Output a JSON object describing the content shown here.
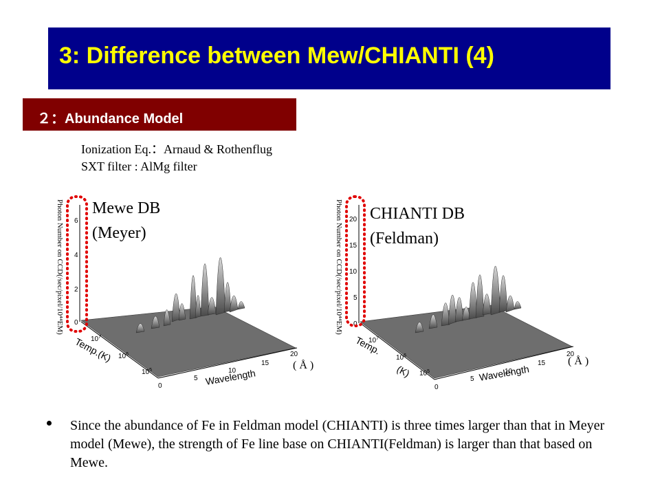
{
  "title": "3: Difference between Mew/CHIANTI (4)",
  "section": "２：Abundance Model",
  "info": {
    "line1": "Ionization Eq.：Arnaud & Rothenflug",
    "line2": "SXT filter : AlMg filter"
  },
  "plots": [
    {
      "db_line1": "Mewe DB",
      "db_line2": "(Meyer)",
      "z_ticks": [
        "6",
        "4",
        "2",
        "0"
      ],
      "y_ticks": [
        "10⁷",
        "10⁶",
        "10⁵"
      ],
      "y_tick_exp": [
        "7",
        "6",
        "5"
      ],
      "x_ticks": [
        "0",
        "5",
        "10",
        "15",
        "20"
      ],
      "z_label": "Photon Number on CCD(/sec/pixel/10⁴⁴EM)",
      "temp_label": "Temp.(K)",
      "wave_label": "Wavelength",
      "unit_label": "( Å )"
    },
    {
      "db_line1": "CHIANTI DB",
      "db_line2": "(Feldman)",
      "z_ticks": [
        "20",
        "15",
        "10",
        "5",
        "0"
      ],
      "y_ticks": [
        "10⁷",
        "10⁶",
        "10⁵"
      ],
      "y_tick_exp": [
        "7",
        "6",
        "5"
      ],
      "x_ticks": [
        "0",
        "5",
        "10",
        "15",
        "20"
      ],
      "z_label": "Photon Number on CCD(/sec/pixel/10⁴⁴EM)",
      "temp_label": "Temp.",
      "temp_label2": "(K)",
      "wave_label": "Wavelength",
      "unit_label": "( Å )"
    }
  ],
  "bullet": "Since the abundance of Fe in Feldman model (CHIANTI) is three times larger than that in Meyer model (Mewe), the strength of Fe line base on CHIANTI(Feldman) is larger than that based on Mewe.",
  "colors": {
    "title_bg": "#00008b",
    "title_text": "#ffff00",
    "section_bg": "#800000",
    "highlight_dots": "#e00000"
  }
}
